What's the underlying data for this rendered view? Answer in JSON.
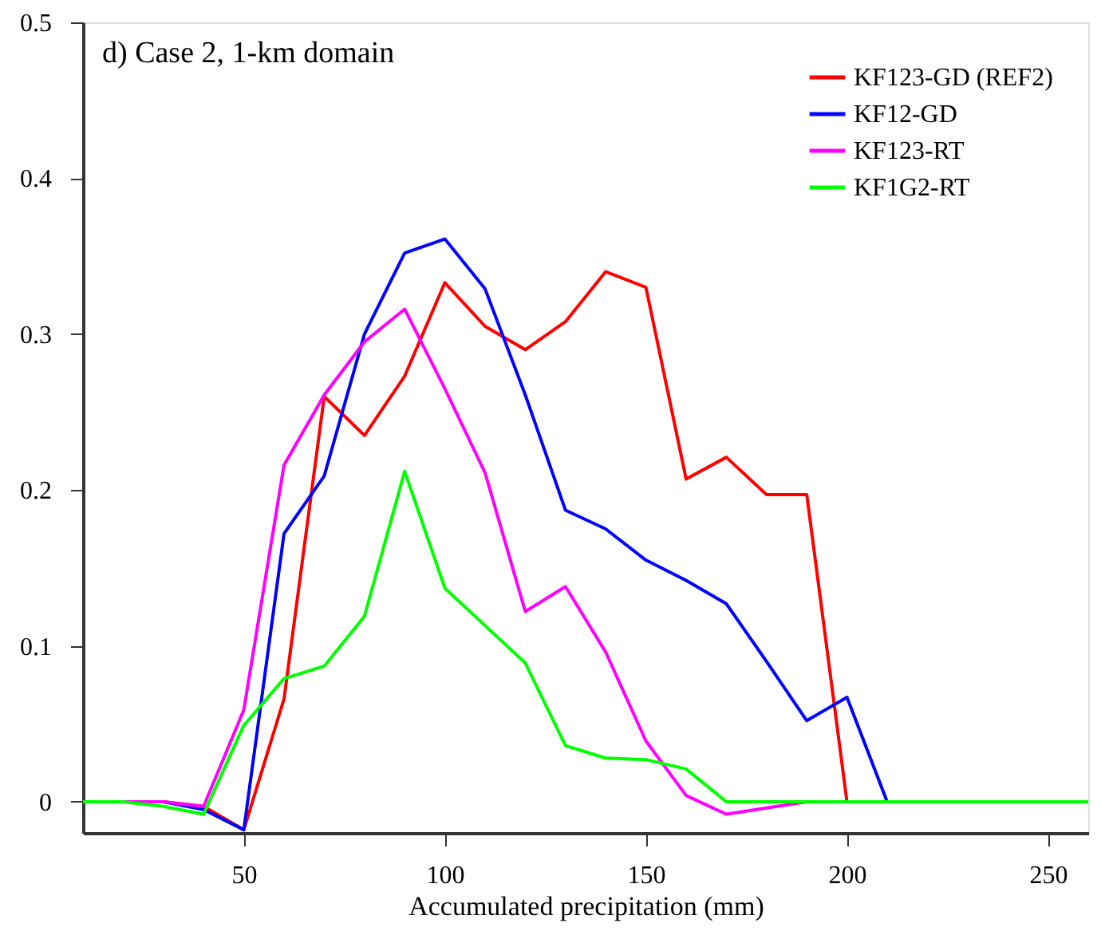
{
  "chart_data": {
    "type": "line",
    "title": "d)    Case 2, 1-km domain",
    "xlabel": "Accumulated precipitation (mm)",
    "x": [
      10,
      20,
      30,
      40,
      50,
      60,
      70,
      80,
      90,
      100,
      110,
      120,
      130,
      140,
      150,
      160,
      170,
      180,
      190,
      200,
      210,
      220,
      230,
      240,
      250,
      260
    ],
    "series": [
      {
        "name": "KF123-GD (REF2)",
        "color": "#ff0000",
        "values": [
          null,
          null,
          0,
          -0.003,
          -0.018,
          0.066,
          0.26,
          0.235,
          0.273,
          0.333,
          0.305,
          0.29,
          0.308,
          0.34,
          0.33,
          0.207,
          0.221,
          0.197,
          0.197,
          0,
          0,
          null,
          null,
          null,
          null,
          null
        ]
      },
      {
        "name": "KF12-GD",
        "color": "#0000ff",
        "values": [
          0,
          0,
          0,
          -0.005,
          -0.018,
          0.172,
          0.209,
          0.3,
          0.352,
          0.361,
          0.329,
          0.261,
          0.187,
          0.175,
          0.155,
          0.142,
          0.127,
          0.09,
          0.052,
          0.067,
          0,
          0,
          null,
          null,
          null,
          null
        ]
      },
      {
        "name": "KF123-RT",
        "color": "#ff00ff",
        "values": [
          0,
          0,
          0,
          -0.003,
          0.059,
          0.216,
          0.261,
          0.295,
          0.316,
          0.265,
          0.211,
          0.122,
          0.138,
          0.096,
          0.039,
          0.004,
          -0.008,
          -0.004,
          0,
          0,
          null,
          null,
          null,
          null,
          null,
          null
        ]
      },
      {
        "name": "KF1G2-RT",
        "color": "#00ff00",
        "values": [
          0,
          0,
          -0.003,
          -0.008,
          0.049,
          0.079,
          0.087,
          0.119,
          0.212,
          0.137,
          0.113,
          0.089,
          0.036,
          0.028,
          0.027,
          0.021,
          0,
          0,
          0,
          0,
          0,
          0,
          0,
          0,
          0,
          0
        ]
      }
    ],
    "xlim": [
      10,
      260
    ],
    "xticks": [
      50,
      100,
      150,
      200,
      250
    ],
    "ylim": [
      -0.02,
      0.5
    ],
    "yticks": [
      0,
      0.1,
      0.2,
      0.3,
      0.4,
      0.5
    ],
    "grid": false,
    "legend": "top right",
    "marker": "none",
    "line_style": "solid"
  }
}
